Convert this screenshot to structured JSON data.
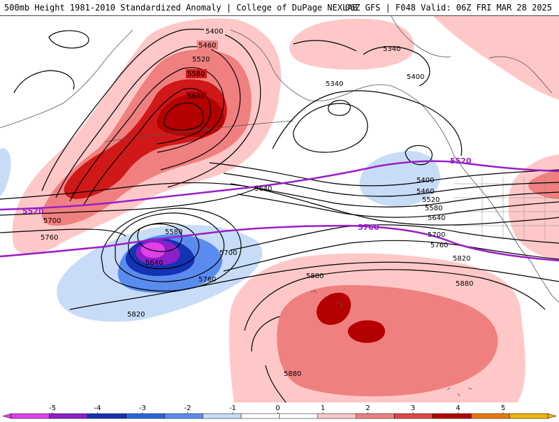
{
  "header": {
    "left": "500mb Height 1981-2010 Standardized Anomaly | College of DuPage NEXLAB",
    "right": "06Z GFS | F048 Valid: 06Z FRI MAR 28 2025"
  },
  "colors": {
    "anomaly_scale": [
      "#e040e8",
      "#8c1fc8",
      "#1432b4",
      "#2a64dc",
      "#5a8cf0",
      "#c8dcf8",
      "#ffffff",
      "#ffffff",
      "#ffc8c8",
      "#f08080",
      "#e04646",
      "#b40000",
      "#e87800",
      "#f0b400"
    ],
    "contour": "#000000",
    "highlight_contour": "#9a1fc7"
  },
  "colorbar": {
    "ticks": [
      "-5",
      "-4",
      "-3",
      "-2",
      "-1",
      "0",
      "1",
      "2",
      "3",
      "4",
      "5"
    ]
  },
  "contour_labels": {
    "c5400_a": "5400",
    "c5460_a": "5460",
    "c5520_a": "5520",
    "c5580_a": "5580",
    "c5640_a": "5640",
    "c5340_b": "5340",
    "c5340_c": "5340",
    "c5400_d": "5400",
    "c5400_e": "5400",
    "c5460_e": "5460",
    "c5520_e": "5520",
    "c5580_e": "5580",
    "c5640_e": "5640",
    "c5700_e": "5700",
    "c5760_e": "5760",
    "c5820_e": "5820",
    "c5880_e": "5880",
    "c5640_f": "5640",
    "c5700_g": "5700",
    "c5760_g": "5760",
    "c5580_h": "5580",
    "c5640_h": "5640",
    "c5700_h": "5700",
    "c5760_h": "5760",
    "c5820_h": "5820",
    "c5880_i": "5880",
    "c5880_j": "5880"
  },
  "highlight_labels": {
    "c5520": "5520",
    "c5520_east": "5520",
    "c5760": "5760"
  }
}
